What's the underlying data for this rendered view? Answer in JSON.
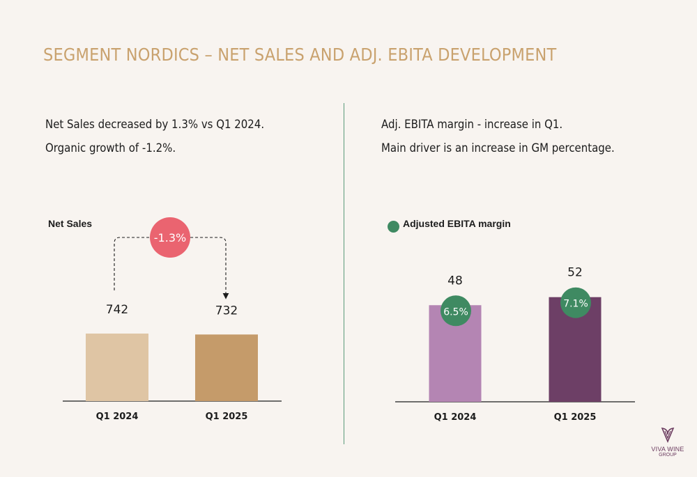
{
  "title": "SEGMENT NORDICS – NET SALES AND ADJ. EBITA DEVELOPMENT",
  "left": {
    "line1": "Net Sales decreased by 1.3% vs Q1 2024.",
    "line2": "Organic growth of -1.2%."
  },
  "right": {
    "line1": "Adj. EBITA margin - increase in Q1.",
    "line2": "Main driver is an increase in GM percentage."
  },
  "logo": {
    "name": "VIVA WINE",
    "sub": "GROUP"
  },
  "colors": {
    "title": "#c9a26e",
    "divider": "#5a9a7a",
    "change_badge": "#ea6470",
    "margin_badge": "#3f8a62"
  },
  "chart_data": [
    {
      "type": "bar",
      "legend": "Net Sales",
      "categories": [
        "Q1 2024",
        "Q1 2025"
      ],
      "values": [
        742,
        732
      ],
      "value_labels": [
        "742",
        "732"
      ],
      "change_label": "-1.3%",
      "ylim": [
        0,
        1500
      ],
      "colors": [
        "#dfc5a4",
        "#c59b6a"
      ]
    },
    {
      "type": "bar",
      "legend": "Adjusted EBITA margin",
      "categories": [
        "Q1 2024",
        "Q1 2025"
      ],
      "values": [
        48,
        52
      ],
      "value_labels": [
        "48",
        "52"
      ],
      "margin_labels": [
        "6.5%",
        "7.1%"
      ],
      "ylim": [
        0,
        73
      ],
      "colors": [
        "#b485b3",
        "#6d3f66"
      ]
    }
  ]
}
